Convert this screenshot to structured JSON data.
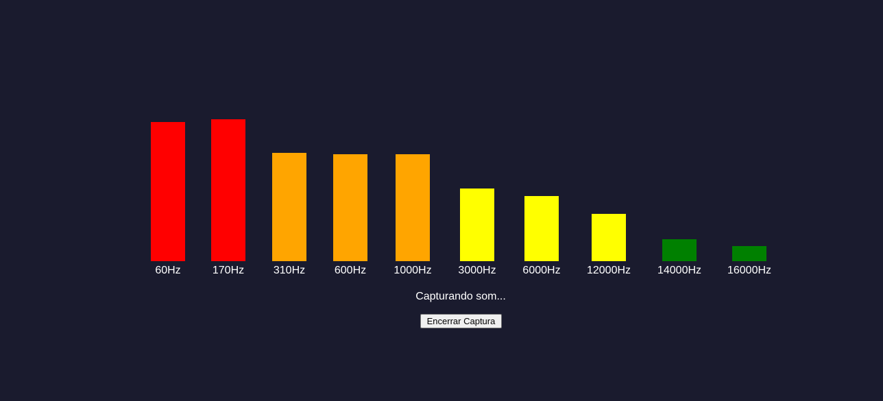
{
  "analyzer": {
    "bands": [
      {
        "label": "60Hz",
        "level": 0.94,
        "color": "#ff0000"
      },
      {
        "label": "170Hz",
        "level": 0.96,
        "color": "#ff0000"
      },
      {
        "label": "310Hz",
        "level": 0.73,
        "color": "#ffa500"
      },
      {
        "label": "600Hz",
        "level": 0.72,
        "color": "#ffa500"
      },
      {
        "label": "1000Hz",
        "level": 0.72,
        "color": "#ffa500"
      },
      {
        "label": "3000Hz",
        "level": 0.49,
        "color": "#ffff00"
      },
      {
        "label": "6000Hz",
        "level": 0.44,
        "color": "#ffff00"
      },
      {
        "label": "12000Hz",
        "level": 0.32,
        "color": "#ffff00"
      },
      {
        "label": "14000Hz",
        "level": 0.15,
        "color": "#008000"
      },
      {
        "label": "16000Hz",
        "level": 0.1,
        "color": "#008000"
      }
    ]
  },
  "status": {
    "text": "Capturando som..."
  },
  "controls": {
    "stop_label": "Encerrar Captura"
  },
  "theme": {
    "background": "#1a1b2e"
  }
}
